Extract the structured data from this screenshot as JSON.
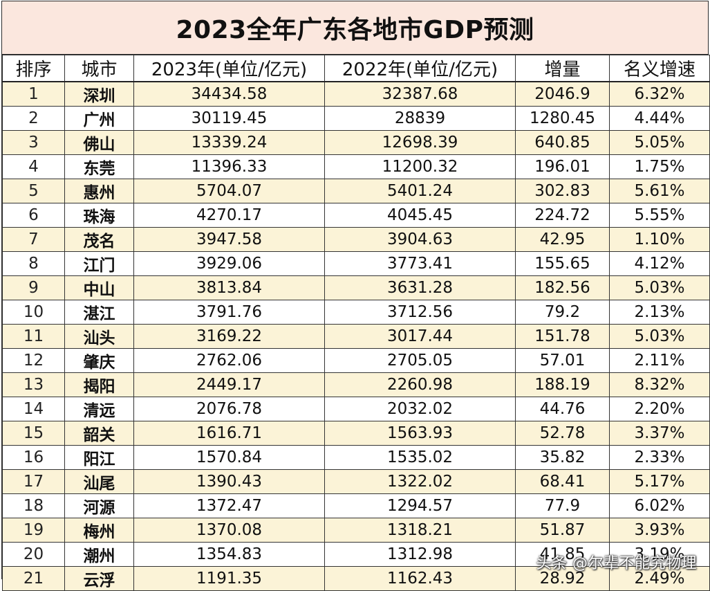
{
  "title": "2023全年广东各地市GDP预测",
  "headers": [
    "排序",
    "城市",
    "2023年(单位/亿元)",
    "2022年(单位/亿元)",
    "增量",
    "名义增速"
  ],
  "rows": [
    [
      "1",
      "深圳",
      "34434.58",
      "32387.68",
      "2046.9",
      "6.32%"
    ],
    [
      "2",
      "广州",
      "30119.45",
      "28839",
      "1280.45",
      "4.44%"
    ],
    [
      "3",
      "佛山",
      "13339.24",
      "12698.39",
      "640.85",
      "5.05%"
    ],
    [
      "4",
      "东莞",
      "11396.33",
      "11200.32",
      "196.01",
      "1.75%"
    ],
    [
      "5",
      "惠州",
      "5704.07",
      "5401.24",
      "302.83",
      "5.61%"
    ],
    [
      "6",
      "珠海",
      "4270.17",
      "4045.45",
      "224.72",
      "5.55%"
    ],
    [
      "7",
      "茂名",
      "3947.58",
      "3904.63",
      "42.95",
      "1.10%"
    ],
    [
      "8",
      "江门",
      "3929.06",
      "3773.41",
      "155.65",
      "4.12%"
    ],
    [
      "9",
      "中山",
      "3813.84",
      "3631.28",
      "182.56",
      "5.03%"
    ],
    [
      "10",
      "湛江",
      "3791.76",
      "3712.56",
      "79.2",
      "2.13%"
    ],
    [
      "11",
      "汕头",
      "3169.22",
      "3017.44",
      "151.78",
      "5.03%"
    ],
    [
      "12",
      "肇庆",
      "2762.06",
      "2705.05",
      "57.01",
      "2.11%"
    ],
    [
      "13",
      "揭阳",
      "2449.17",
      "2260.98",
      "188.19",
      "8.32%"
    ],
    [
      "14",
      "清远",
      "2076.78",
      "2032.02",
      "44.76",
      "2.20%"
    ],
    [
      "15",
      "韶关",
      "1616.71",
      "1563.93",
      "52.78",
      "3.37%"
    ],
    [
      "16",
      "阳江",
      "1570.84",
      "1535.02",
      "35.82",
      "2.33%"
    ],
    [
      "17",
      "汕尾",
      "1390.43",
      "1322.02",
      "68.41",
      "5.17%"
    ],
    [
      "18",
      "河源",
      "1372.47",
      "1294.57",
      "77.9",
      "6.02%"
    ],
    [
      "19",
      "梅州",
      "1370.08",
      "1318.21",
      "51.87",
      "3.93%"
    ],
    [
      "20",
      "潮州",
      "1354.83",
      "1312.98",
      "41.85",
      "3.19%"
    ],
    [
      "21",
      "云浮",
      "1191.35",
      "1162.43",
      "28.92",
      "2.49%"
    ]
  ],
  "watermark": "头条 @尔辈不能究物理",
  "colors": {
    "title_bg": "#fbe7de",
    "odd_row_bg": "#fbf3d7",
    "even_row_bg": "#ffffff",
    "border": "#333333"
  }
}
